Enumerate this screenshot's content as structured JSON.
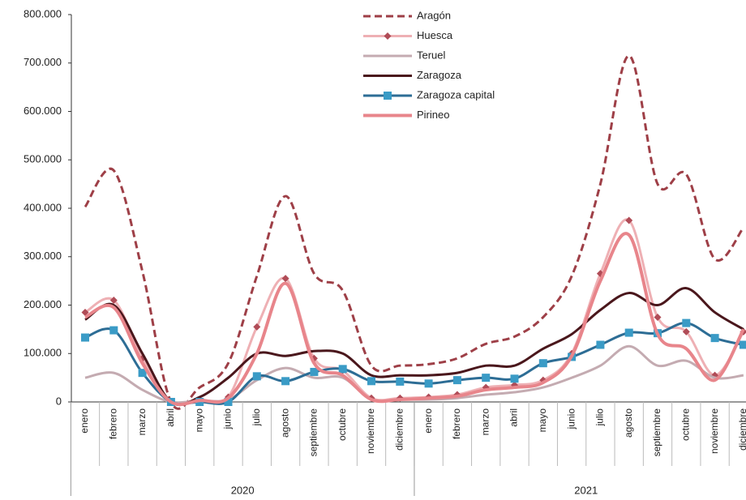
{
  "chart_data": {
    "type": "line",
    "categories": [
      "enero",
      "febrero",
      "marzo",
      "abril",
      "mayo",
      "junio",
      "julio",
      "agosto",
      "septiembre",
      "octubre",
      "noviembre",
      "diciembre",
      "enero",
      "febrero",
      "marzo",
      "abril",
      "mayo",
      "junio",
      "julio",
      "agosto",
      "septiembre",
      "octubre",
      "noviembre",
      "diciembre"
    ],
    "groups": [
      {
        "label": "2020",
        "span": [
          0,
          11
        ]
      },
      {
        "label": "2021",
        "span": [
          12,
          23
        ]
      }
    ],
    "ylim": [
      0,
      800000
    ],
    "yticks": [
      0,
      {
        "value": 100000,
        "label": "100.000"
      },
      {
        "value": 200000,
        "label": "200.000"
      },
      {
        "value": 300000,
        "label": "300.000"
      },
      {
        "value": 400000,
        "label": "400.000"
      },
      {
        "value": 500000,
        "label": "500.000"
      },
      {
        "value": 600000,
        "label": "600.000"
      },
      {
        "value": 700000,
        "label": "700.000"
      },
      {
        "value": 800000,
        "label": "800.000"
      }
    ],
    "grid": false,
    "legend": "top",
    "series": [
      {
        "name": "Aragón",
        "color": "#9e3f47",
        "style": "dashed",
        "width": 3,
        "values": [
          403000,
          478000,
          270000,
          0,
          30000,
          80000,
          260000,
          425000,
          265000,
          230000,
          75000,
          75000,
          78000,
          90000,
          120000,
          135000,
          175000,
          260000,
          450000,
          715000,
          450000,
          470000,
          295000,
          360000
        ]
      },
      {
        "name": "Huesca",
        "color": "#eeb0b4",
        "marker": "diamond",
        "marker_color": "#b04c57",
        "width": 3,
        "values": [
          185000,
          210000,
          90000,
          0,
          5000,
          10000,
          155000,
          255000,
          90000,
          65000,
          8000,
          8000,
          10000,
          15000,
          30000,
          35000,
          45000,
          100000,
          265000,
          375000,
          175000,
          145000,
          55000,
          145000
        ]
      },
      {
        "name": "Teruel",
        "color": "#c4abb1",
        "width": 3,
        "values": [
          50000,
          60000,
          25000,
          0,
          3000,
          5000,
          45000,
          70000,
          50000,
          50000,
          5000,
          5000,
          5000,
          8000,
          15000,
          20000,
          30000,
          50000,
          75000,
          115000,
          75000,
          85000,
          50000,
          55000
        ]
      },
      {
        "name": "Zaragoza",
        "color": "#4a171c",
        "width": 3,
        "values": [
          170000,
          200000,
          100000,
          0,
          10000,
          50000,
          100000,
          95000,
          105000,
          100000,
          55000,
          55000,
          55000,
          60000,
          75000,
          75000,
          110000,
          140000,
          190000,
          225000,
          200000,
          235000,
          185000,
          150000
        ]
      },
      {
        "name": "Zaragoza capital",
        "color": "#2d6d95",
        "marker": "square",
        "marker_color": "#3a9bc6",
        "width": 3,
        "values": [
          133000,
          148000,
          60000,
          0,
          0,
          0,
          53000,
          43000,
          62000,
          68000,
          43000,
          42000,
          38000,
          45000,
          50000,
          48000,
          80000,
          93000,
          118000,
          143000,
          142000,
          163000,
          132000,
          118000
        ]
      },
      {
        "name": "Pirineo",
        "color": "#e8858b",
        "width": 4,
        "values": [
          175000,
          195000,
          80000,
          0,
          3000,
          8000,
          100000,
          245000,
          80000,
          55000,
          5000,
          5000,
          8000,
          12000,
          25000,
          30000,
          40000,
          95000,
          250000,
          345000,
          140000,
          110000,
          45000,
          150000
        ]
      }
    ]
  }
}
